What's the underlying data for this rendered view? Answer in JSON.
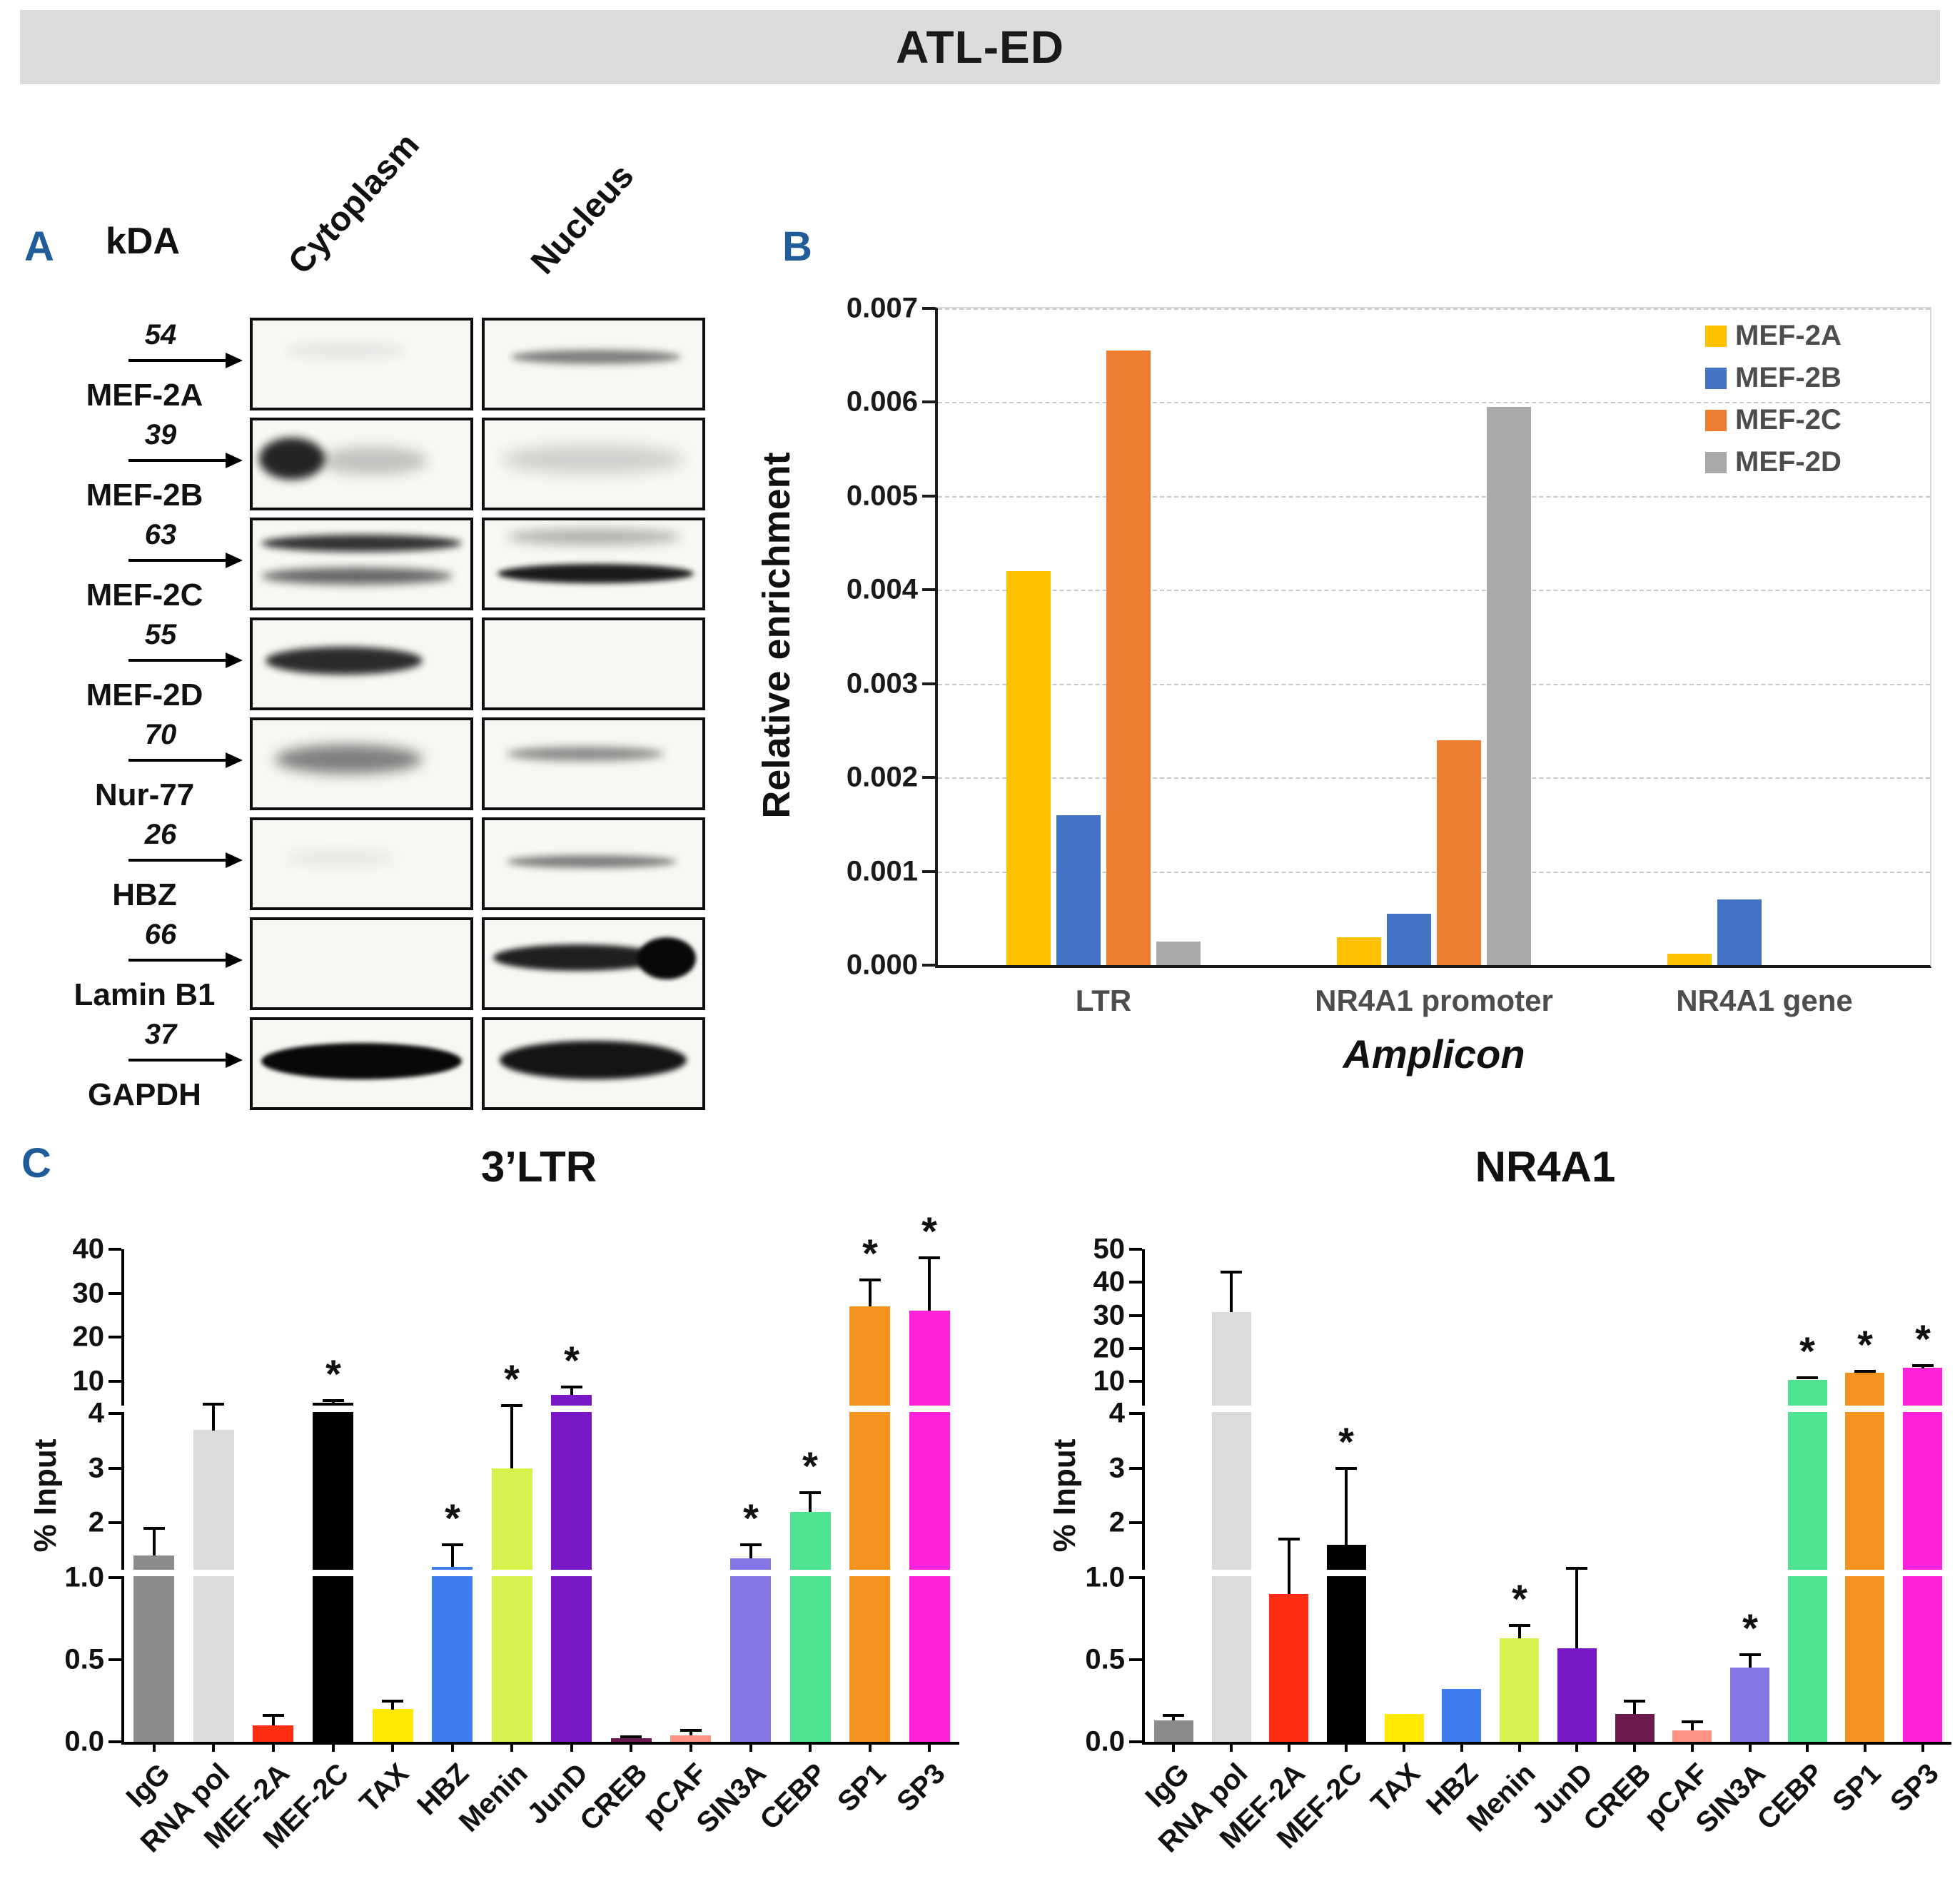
{
  "header": {
    "title": "ATL-ED"
  },
  "panel_labels": {
    "a": "A",
    "b": "B",
    "c": "C"
  },
  "colors": {
    "header_bar": "#DCDCDC",
    "panel_label": "#1F5C99"
  },
  "panelA": {
    "kda_header": "kDA",
    "lanes": [
      "Cytoplasm",
      "Nucleus"
    ],
    "rows": [
      {
        "kda": "54",
        "protein": "MEF-2A",
        "bands": {
          "Cytoplasm": [
            {
              "x": 0.15,
              "y": 0.25,
              "w": 0.55,
              "h": 0.18,
              "o": 0.07,
              "b": 8
            }
          ],
          "Nucleus": [
            {
              "x": 0.12,
              "y": 0.34,
              "w": 0.78,
              "h": 0.16,
              "o": 0.5,
              "b": 5
            }
          ]
        }
      },
      {
        "kda": "39",
        "protein": "MEF-2B",
        "bands": {
          "Cytoplasm": [
            {
              "x": 0.03,
              "y": 0.2,
              "w": 0.3,
              "h": 0.48,
              "o": 0.88,
              "b": 6
            },
            {
              "x": 0.3,
              "y": 0.3,
              "w": 0.5,
              "h": 0.32,
              "o": 0.22,
              "b": 9
            }
          ],
          "Nucleus": [
            {
              "x": 0.08,
              "y": 0.28,
              "w": 0.84,
              "h": 0.34,
              "o": 0.16,
              "b": 10
            }
          ]
        }
      },
      {
        "kda": "63",
        "protein": "MEF-2C",
        "bands": {
          "Cytoplasm": [
            {
              "x": 0.04,
              "y": 0.16,
              "w": 0.92,
              "h": 0.2,
              "o": 0.82,
              "b": 5
            },
            {
              "x": 0.04,
              "y": 0.54,
              "w": 0.88,
              "h": 0.2,
              "o": 0.6,
              "b": 6
            }
          ],
          "Nucleus": [
            {
              "x": 0.1,
              "y": 0.1,
              "w": 0.8,
              "h": 0.18,
              "o": 0.3,
              "b": 8
            },
            {
              "x": 0.06,
              "y": 0.5,
              "w": 0.9,
              "h": 0.22,
              "o": 0.92,
              "b": 4
            }
          ]
        }
      },
      {
        "kda": "55",
        "protein": "MEF-2D",
        "bands": {
          "Cytoplasm": [
            {
              "x": 0.06,
              "y": 0.3,
              "w": 0.72,
              "h": 0.32,
              "o": 0.85,
              "b": 5
            }
          ],
          "Nucleus": []
        }
      },
      {
        "kda": "70",
        "protein": "Nur-77",
        "bands": {
          "Cytoplasm": [
            {
              "x": 0.1,
              "y": 0.28,
              "w": 0.68,
              "h": 0.34,
              "o": 0.5,
              "b": 9
            }
          ],
          "Nucleus": [
            {
              "x": 0.1,
              "y": 0.3,
              "w": 0.72,
              "h": 0.16,
              "o": 0.45,
              "b": 6
            }
          ]
        }
      },
      {
        "kda": "26",
        "protein": "HBZ",
        "bands": {
          "Cytoplasm": [
            {
              "x": 0.15,
              "y": 0.35,
              "w": 0.5,
              "h": 0.16,
              "o": 0.07,
              "b": 9
            }
          ],
          "Nucleus": [
            {
              "x": 0.1,
              "y": 0.4,
              "w": 0.78,
              "h": 0.15,
              "o": 0.5,
              "b": 5
            }
          ]
        }
      },
      {
        "kda": "66",
        "protein": "Lamin B1",
        "bands": {
          "Cytoplasm": [],
          "Nucleus": [
            {
              "x": 0.04,
              "y": 0.28,
              "w": 0.78,
              "h": 0.3,
              "o": 0.9,
              "b": 4
            },
            {
              "x": 0.7,
              "y": 0.2,
              "w": 0.27,
              "h": 0.48,
              "o": 1,
              "b": 3
            }
          ]
        }
      },
      {
        "kda": "37",
        "protein": "GAPDH",
        "bands": {
          "Cytoplasm": [
            {
              "x": 0.04,
              "y": 0.26,
              "w": 0.92,
              "h": 0.42,
              "o": 1,
              "b": 3
            }
          ],
          "Nucleus": [
            {
              "x": 0.07,
              "y": 0.24,
              "w": 0.86,
              "h": 0.44,
              "o": 0.95,
              "b": 4
            }
          ]
        }
      }
    ]
  },
  "chart_data": [
    {
      "id": "panelB",
      "type": "bar",
      "title": "",
      "xlabel": "Amplicon",
      "ylabel": "Relative enrichment",
      "ylim": [
        0,
        0.007
      ],
      "ytick_step": 0.001,
      "gridlines": "dashed horizontal",
      "legend_position": "top-right",
      "categories": [
        "LTR",
        "NR4A1 promoter",
        "NR4A1 gene"
      ],
      "series": [
        {
          "name": "MEF-2A",
          "color": "#FFC000",
          "values": [
            0.0042,
            0.0003,
            0.00012
          ]
        },
        {
          "name": "MEF-2B",
          "color": "#4472C4",
          "values": [
            0.0016,
            0.00055,
            0.0007
          ]
        },
        {
          "name": "MEF-2C",
          "color": "#ED7D31",
          "values": [
            0.00655,
            0.0024,
            0
          ]
        },
        {
          "name": "MEF-2D",
          "color": "#A9A9A9",
          "values": [
            0.00025,
            0.00595,
            0
          ]
        }
      ]
    },
    {
      "id": "panelC-LTR",
      "type": "bar",
      "title": "3’LTR",
      "ylabel": "% Input",
      "axis_segments": [
        [
          0,
          1
        ],
        [
          1,
          4
        ],
        [
          10,
          40
        ]
      ],
      "ymax": 40,
      "yticks": [
        {
          "v": 0,
          "label": "0.0"
        },
        {
          "v": 0.5,
          "label": "0.5"
        },
        {
          "v": 1,
          "label": "1.0"
        },
        {
          "v": 2,
          "label": "2"
        },
        {
          "v": 3,
          "label": "3"
        },
        {
          "v": 4,
          "label": "4"
        },
        {
          "v": 10,
          "label": "10"
        },
        {
          "v": 20,
          "label": "20"
        },
        {
          "v": 30,
          "label": "30"
        },
        {
          "v": 40,
          "label": "40"
        }
      ],
      "sig_marker": "*",
      "categories": [
        "IgG",
        "RNA pol",
        "MEF-2A",
        "MEF-2C",
        "TAX",
        "HBZ",
        "Menin",
        "JunD",
        "CREB",
        "pCAF",
        "SIN3A",
        "CEBP",
        "SP1",
        "SP3"
      ],
      "colors": [
        "#8C8C8C",
        "#DBDBDB",
        "#FF2E12",
        "#000000",
        "#FFE900",
        "#3E7DF0",
        "#D7F24F",
        "#7A18C8",
        "#6B1A4E",
        "#FF9282",
        "#8578E6",
        "#4FE392",
        "#F59320",
        "#FF22DD"
      ],
      "values": [
        1.4,
        3.7,
        0.1,
        6.0,
        0.2,
        1.2,
        3.0,
        7.5,
        0.02,
        0.04,
        1.35,
        2.2,
        27,
        26
      ],
      "errors": [
        0.5,
        2.1,
        0.06,
        0.4,
        0.05,
        0.4,
        2.5,
        1.5,
        0.01,
        0.03,
        0.25,
        0.35,
        6,
        12
      ],
      "significant": [
        false,
        false,
        false,
        true,
        false,
        true,
        true,
        true,
        false,
        false,
        true,
        true,
        true,
        true
      ]
    },
    {
      "id": "panelC-NR4A1",
      "type": "bar",
      "title": "NR4A1",
      "ylabel": "% Input",
      "axis_segments": [
        [
          0,
          1
        ],
        [
          1,
          4
        ],
        [
          10,
          50
        ]
      ],
      "ymax": 50,
      "yticks": [
        {
          "v": 0,
          "label": "0.0"
        },
        {
          "v": 0.5,
          "label": "0.5"
        },
        {
          "v": 1,
          "label": "1.0"
        },
        {
          "v": 2,
          "label": "2"
        },
        {
          "v": 3,
          "label": "3"
        },
        {
          "v": 4,
          "label": "4"
        },
        {
          "v": 10,
          "label": "10"
        },
        {
          "v": 20,
          "label": "20"
        },
        {
          "v": 30,
          "label": "30"
        },
        {
          "v": 40,
          "label": "40"
        },
        {
          "v": 50,
          "label": "50"
        }
      ],
      "sig_marker": "*",
      "categories": [
        "IgG",
        "RNA pol",
        "MEF-2A",
        "MEF-2C",
        "TAX",
        "HBZ",
        "Menin",
        "JunD",
        "CREB",
        "pCAF",
        "SIN3A",
        "CEBP",
        "SP1",
        "SP3"
      ],
      "colors": [
        "#8C8C8C",
        "#DBDBDB",
        "#FF2E12",
        "#000000",
        "#FFE900",
        "#3E7DF0",
        "#D7F24F",
        "#7A18C8",
        "#6B1A4E",
        "#FF9282",
        "#8578E6",
        "#4FE392",
        "#F59320",
        "#FF22DD"
      ],
      "values": [
        0.13,
        31,
        0.9,
        1.6,
        0.17,
        0.32,
        0.63,
        0.57,
        0.17,
        0.07,
        0.45,
        10.5,
        12.5,
        14
      ],
      "errors": [
        0.03,
        12,
        0.8,
        1.4,
        0,
        0,
        0.08,
        0.6,
        0.08,
        0.05,
        0.08,
        0.5,
        0.5,
        0.8
      ],
      "significant": [
        false,
        false,
        false,
        true,
        false,
        false,
        true,
        false,
        false,
        false,
        true,
        true,
        true,
        true
      ]
    }
  ]
}
